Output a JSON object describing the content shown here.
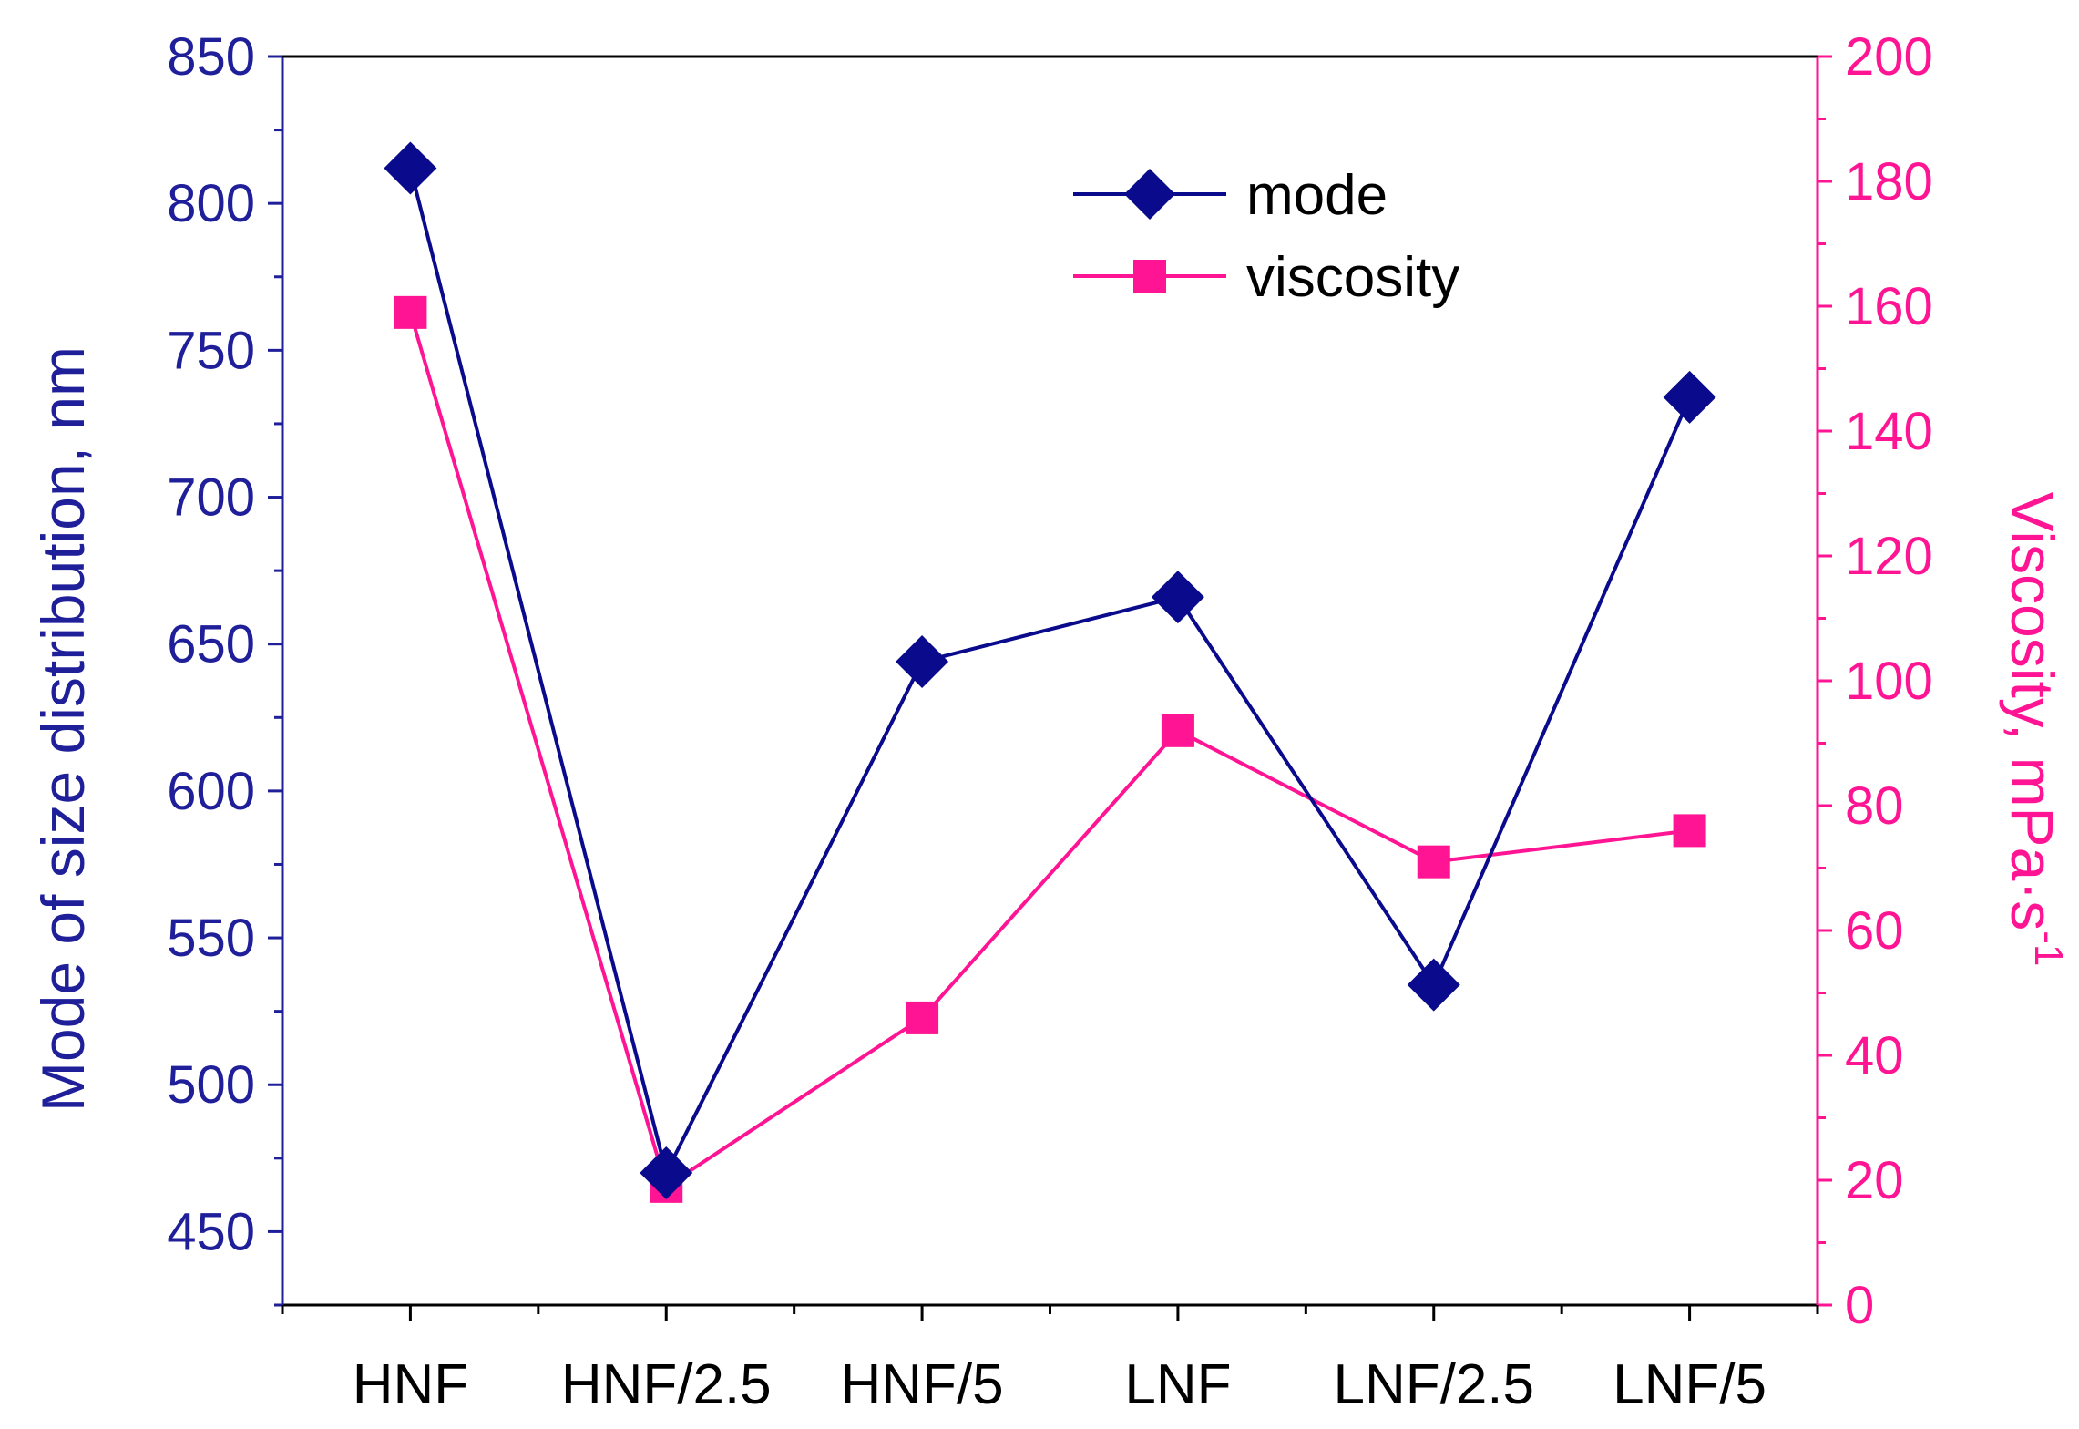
{
  "chart_data": {
    "type": "line",
    "categories": [
      "HNF",
      "HNF/2.5",
      "HNF/5",
      "LNF",
      "LNF/2.5",
      "LNF/5"
    ],
    "series": [
      {
        "name": "mode",
        "axis": "left",
        "marker": "diamond",
        "color": "#0a0a8c",
        "values": [
          812,
          470,
          644,
          666,
          534,
          734
        ]
      },
      {
        "name": "viscosity",
        "axis": "right",
        "marker": "square",
        "color": "#ff1493",
        "values": [
          159,
          19,
          46,
          92,
          71,
          76
        ]
      }
    ],
    "yleft": {
      "label": "Mode of size distribution, nm",
      "lim": [
        425,
        850
      ],
      "ticks": [
        450,
        500,
        550,
        600,
        650,
        700,
        750,
        800,
        850
      ],
      "color": "#1f1f9a"
    },
    "yright": {
      "label": "Viscosity, mPa·s",
      "label_superscript": "-1",
      "lim": [
        0,
        200
      ],
      "ticks": [
        0,
        20,
        40,
        60,
        80,
        100,
        120,
        140,
        160,
        180,
        200
      ],
      "color": "#ff1493"
    },
    "legend": {
      "position": "top-right",
      "entries": [
        "mode",
        "viscosity"
      ]
    }
  }
}
